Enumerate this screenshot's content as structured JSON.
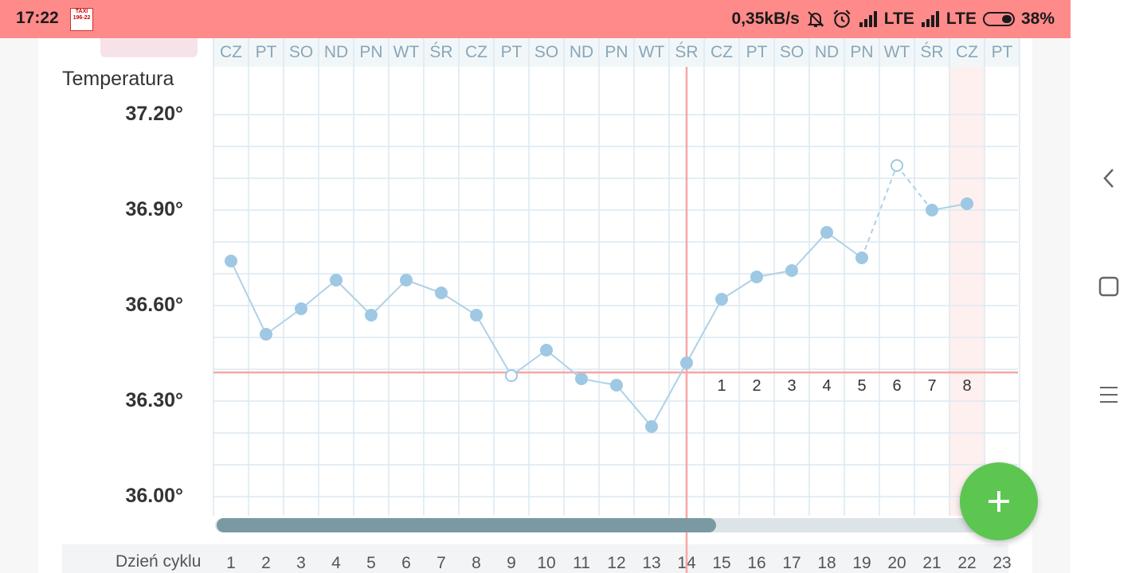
{
  "status_bar": {
    "time": "17:22",
    "taxi_badge": "TAXI 196-22",
    "speed": "0,35kB/s",
    "net1": "LTE",
    "net2": "LTE",
    "battery": "38%",
    "battery_level": 0.38
  },
  "chart": {
    "title": "Temperatura",
    "y_ticks": [
      "37.20°",
      "36.90°",
      "36.60°",
      "36.30°",
      "36.00°"
    ],
    "day_names": [
      "CZ",
      "PT",
      "SO",
      "ND",
      "PN",
      "WT",
      "ŚR",
      "CZ",
      "PT",
      "SO",
      "ND",
      "PN",
      "WT",
      "ŚR",
      "CZ",
      "PT",
      "SO",
      "ND",
      "PN",
      "WT",
      "ŚR",
      "CZ",
      "PT"
    ],
    "cycle_label": "Dzień cyklu",
    "cycle_days": [
      "1",
      "2",
      "3",
      "4",
      "5",
      "6",
      "7",
      "8",
      "9",
      "10",
      "11",
      "12",
      "13",
      "14",
      "15",
      "16",
      "17",
      "18",
      "19",
      "20",
      "21",
      "22",
      "23"
    ],
    "post_ovulation_labels": [
      "1",
      "2",
      "3",
      "4",
      "5",
      "6",
      "7",
      "8"
    ],
    "cover_line_temp": 36.39,
    "ovulation_day": 14,
    "today_day": 22
  },
  "chart_data": {
    "type": "line",
    "title": "Temperatura",
    "xlabel": "Dzień cyklu",
    "ylabel": "",
    "ylim": [
      35.9,
      37.3
    ],
    "x": [
      1,
      2,
      3,
      4,
      5,
      6,
      7,
      8,
      9,
      10,
      11,
      12,
      13,
      14,
      15,
      16,
      17,
      18,
      19,
      20,
      21,
      22
    ],
    "series": [
      {
        "values": [
          36.74,
          36.51,
          36.59,
          36.68,
          36.57,
          36.68,
          36.64,
          36.57,
          36.38,
          36.46,
          36.37,
          36.35,
          36.22,
          36.42,
          36.62,
          36.69,
          36.71,
          36.83,
          36.75,
          37.04,
          36.9,
          36.92
        ],
        "excluded_days": [
          9,
          20
        ]
      }
    ],
    "colors": {
      "line": "#aed1e6",
      "point": "#9ec8e3",
      "cover_line": "#f8a5a5",
      "grid": "#dce9f1"
    }
  },
  "scrollbar": {
    "position_fraction": 0.0,
    "visible_fraction": 0.63
  },
  "fab": {
    "icon": "plus-icon",
    "label": "+"
  },
  "nav": {
    "back_icon": "back-icon",
    "home_icon": "home-icon",
    "menu_icon": "menu-icon"
  }
}
